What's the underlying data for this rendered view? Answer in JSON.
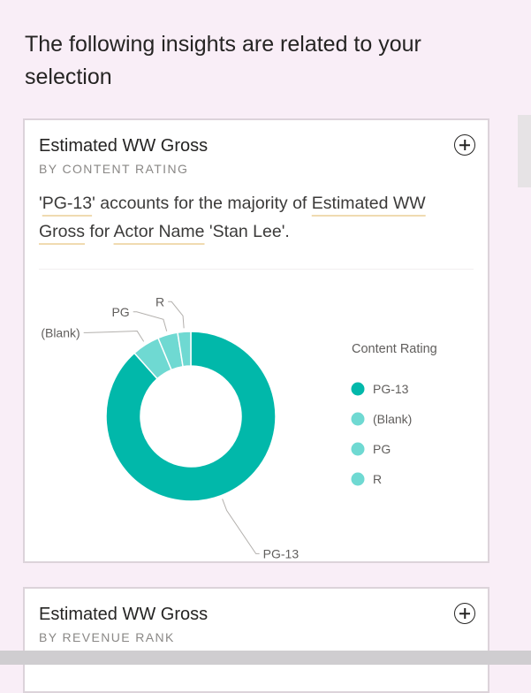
{
  "heading": "The following insights are related to your selection",
  "cards": [
    {
      "title": "Estimated WW Gross",
      "subtitle": "BY CONTENT RATING",
      "insight": {
        "t1": "'",
        "h1": "PG-13",
        "t2": "' accounts for the majority of ",
        "h2": "Estimated WW",
        "h3": "Gross",
        "t3": " for ",
        "h4": "Actor Name",
        "t4": " 'Stan Lee'."
      }
    },
    {
      "title": "Estimated WW Gross",
      "subtitle": "BY REVENUE RANK"
    }
  ],
  "chart_data": {
    "type": "pie",
    "style": "donut",
    "legend_title": "Content Rating",
    "legend_position": "right",
    "categories": [
      "PG-13",
      "(Blank)",
      "PG",
      "R"
    ],
    "values": [
      88.4,
      5.3,
      3.8,
      2.5
    ],
    "colors": [
      "#01b8aa",
      "#6fd9d2",
      "#6fd9d2",
      "#6fd9d2"
    ]
  }
}
